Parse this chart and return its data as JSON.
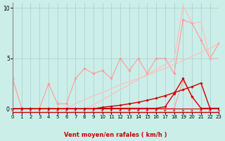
{
  "xlabel": "Vent moyen/en rafales ( km/h )",
  "xlim": [
    0,
    23
  ],
  "ylim": [
    -0.3,
    10.5
  ],
  "yticks": [
    0,
    5,
    10
  ],
  "xticks": [
    0,
    1,
    2,
    3,
    4,
    5,
    6,
    7,
    8,
    9,
    10,
    11,
    12,
    13,
    14,
    15,
    16,
    17,
    18,
    19,
    20,
    21,
    22,
    23
  ],
  "bg_color": "#cceee8",
  "grid_color": "#aacccc",
  "lines": [
    {
      "x": [
        0,
        1,
        2,
        3,
        4,
        5,
        6,
        7,
        8,
        9,
        10,
        11,
        12,
        13,
        14,
        15,
        16,
        17,
        18,
        19,
        20,
        21,
        22,
        23
      ],
      "y": [
        3.0,
        0.05,
        0.05,
        0.05,
        0.05,
        0.05,
        0.05,
        0.05,
        0.05,
        0.05,
        0.05,
        0.05,
        0.05,
        0.05,
        0.05,
        0.05,
        0.05,
        0.05,
        0.05,
        2.8,
        1.2,
        0.05,
        0.05,
        0.05
      ],
      "color": "#ff9999",
      "lw": 0.8,
      "marker": "D",
      "ms": 1.8
    },
    {
      "x": [
        0,
        1,
        2,
        3,
        4,
        5,
        6,
        7,
        8,
        9,
        10,
        11,
        12,
        13,
        14,
        15,
        16,
        17,
        18,
        19,
        20,
        21,
        22,
        23
      ],
      "y": [
        0.05,
        0.05,
        0.05,
        0.05,
        2.5,
        0.5,
        0.5,
        3.0,
        4.0,
        3.5,
        3.8,
        3.0,
        5.0,
        3.8,
        5.0,
        3.5,
        5.0,
        5.0,
        3.5,
        8.8,
        8.5,
        6.8,
        5.0,
        6.5
      ],
      "color": "#ff9999",
      "lw": 0.8,
      "marker": "D",
      "ms": 1.8
    },
    {
      "x": [
        0,
        1,
        2,
        3,
        4,
        5,
        6,
        7,
        8,
        9,
        10,
        11,
        12,
        13,
        14,
        15,
        16,
        17,
        18,
        19,
        20,
        21,
        22,
        23
      ],
      "y": [
        0.0,
        0.0,
        0.0,
        0.0,
        0.0,
        0.0,
        0.0,
        0.5,
        0.9,
        1.3,
        1.6,
        2.0,
        2.4,
        2.7,
        3.0,
        3.3,
        3.7,
        4.0,
        4.4,
        4.8,
        5.2,
        5.6,
        6.0,
        6.5
      ],
      "color": "#ffbbbb",
      "lw": 0.8,
      "marker": null,
      "ms": 0
    },
    {
      "x": [
        0,
        1,
        2,
        3,
        4,
        5,
        6,
        7,
        8,
        9,
        10,
        11,
        12,
        13,
        14,
        15,
        16,
        17,
        18,
        19,
        20,
        21,
        22,
        23
      ],
      "y": [
        0.0,
        0.0,
        0.0,
        0.0,
        0.0,
        0.0,
        0.0,
        0.0,
        0.0,
        0.4,
        0.9,
        1.4,
        1.9,
        2.4,
        2.9,
        3.4,
        3.9,
        4.4,
        4.9,
        10.2,
        8.5,
        8.6,
        5.0,
        5.0
      ],
      "color": "#ffbbbb",
      "lw": 0.8,
      "marker": null,
      "ms": 0
    },
    {
      "x": [
        0,
        1,
        2,
        3,
        4,
        5,
        6,
        7,
        8,
        9,
        10,
        11,
        12,
        13,
        14,
        15,
        16,
        17,
        18,
        19,
        20,
        21,
        22,
        23
      ],
      "y": [
        0.0,
        0.0,
        0.0,
        0.0,
        0.0,
        0.0,
        0.0,
        0.0,
        0.0,
        0.0,
        0.05,
        0.05,
        0.05,
        0.05,
        0.05,
        0.05,
        0.05,
        0.2,
        1.5,
        3.0,
        1.2,
        0.05,
        0.05,
        0.05
      ],
      "color": "#cc0000",
      "lw": 1.0,
      "marker": "D",
      "ms": 1.8
    },
    {
      "x": [
        0,
        1,
        2,
        3,
        4,
        5,
        6,
        7,
        8,
        9,
        10,
        11,
        12,
        13,
        14,
        15,
        16,
        17,
        18,
        19,
        20,
        21,
        22,
        23
      ],
      "y": [
        0.0,
        0.0,
        0.0,
        0.0,
        0.0,
        0.0,
        0.0,
        0.0,
        0.0,
        0.0,
        0.15,
        0.25,
        0.35,
        0.5,
        0.65,
        0.85,
        1.05,
        1.3,
        1.6,
        1.9,
        2.2,
        2.55,
        0.05,
        0.05
      ],
      "color": "#cc0000",
      "lw": 1.0,
      "marker": "D",
      "ms": 1.8
    }
  ],
  "arrow_color": "#cc0000",
  "arrow_angles": [
    20,
    25,
    25,
    25,
    25,
    25,
    25,
    30,
    35,
    40,
    45,
    50,
    55,
    60,
    65,
    70,
    75,
    80,
    85,
    90,
    95,
    100,
    105,
    110
  ]
}
